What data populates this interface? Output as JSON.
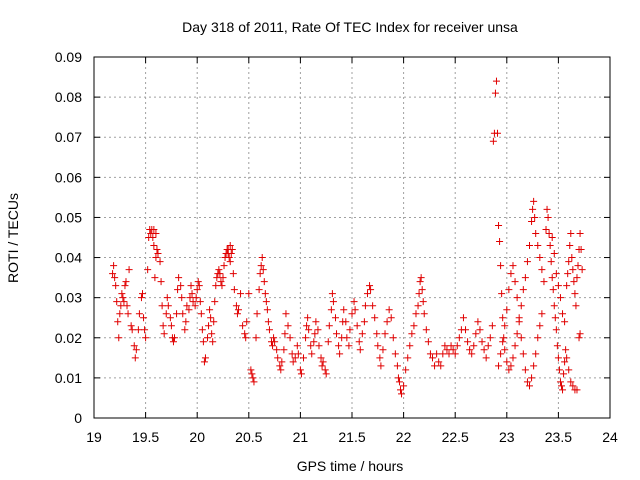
{
  "chart_data": {
    "type": "scatter",
    "title": "Day 318 of 2011, Rate Of TEC Index for receiver unsa",
    "xlabel": "GPS time / hours",
    "ylabel": "ROTI / TECUs",
    "xlim": [
      19,
      24
    ],
    "ylim": [
      0,
      0.09
    ],
    "xticks": [
      "19",
      "19.5",
      "20",
      "20.5",
      "21",
      "21.5",
      "22",
      "22.5",
      "23",
      "23.5",
      "24"
    ],
    "yticks": [
      "0",
      "0.01",
      "0.02",
      "0.03",
      "0.04",
      "0.05",
      "0.06",
      "0.07",
      "0.08",
      "0.09"
    ],
    "grid": true,
    "marker": "+",
    "color": "#e00000",
    "points": [
      [
        19.18,
        0.036
      ],
      [
        19.19,
        0.038
      ],
      [
        19.2,
        0.035
      ],
      [
        19.21,
        0.033
      ],
      [
        19.22,
        0.029
      ],
      [
        19.23,
        0.024
      ],
      [
        19.24,
        0.02
      ],
      [
        19.25,
        0.026
      ],
      [
        19.26,
        0.028
      ],
      [
        19.27,
        0.031
      ],
      [
        19.28,
        0.03
      ],
      [
        19.29,
        0.029
      ],
      [
        19.3,
        0.033
      ],
      [
        19.31,
        0.034
      ],
      [
        19.32,
        0.028
      ],
      [
        19.33,
        0.026
      ],
      [
        19.34,
        0.037
      ],
      [
        19.36,
        0.023
      ],
      [
        19.37,
        0.022
      ],
      [
        19.39,
        0.018
      ],
      [
        19.4,
        0.015
      ],
      [
        19.41,
        0.017
      ],
      [
        19.43,
        0.022
      ],
      [
        19.44,
        0.026
      ],
      [
        19.46,
        0.03
      ],
      [
        19.47,
        0.031
      ],
      [
        19.48,
        0.025
      ],
      [
        19.49,
        0.022
      ],
      [
        19.5,
        0.02
      ],
      [
        19.52,
        0.037
      ],
      [
        19.53,
        0.045
      ],
      [
        19.54,
        0.047
      ],
      [
        19.55,
        0.046
      ],
      [
        19.56,
        0.047
      ],
      [
        19.57,
        0.045
      ],
      [
        19.58,
        0.043
      ],
      [
        19.59,
        0.035
      ],
      [
        19.6,
        0.04
      ],
      [
        19.61,
        0.042
      ],
      [
        19.62,
        0.041
      ],
      [
        19.64,
        0.039
      ],
      [
        19.65,
        0.034
      ],
      [
        19.66,
        0.028
      ],
      [
        19.67,
        0.023
      ],
      [
        19.68,
        0.021
      ],
      [
        19.7,
        0.026
      ],
      [
        19.71,
        0.03
      ],
      [
        19.72,
        0.028
      ],
      [
        19.74,
        0.025
      ],
      [
        19.75,
        0.023
      ],
      [
        19.76,
        0.02
      ],
      [
        19.77,
        0.019
      ],
      [
        19.78,
        0.02
      ],
      [
        19.8,
        0.026
      ],
      [
        19.81,
        0.032
      ],
      [
        19.82,
        0.035
      ],
      [
        19.84,
        0.033
      ],
      [
        19.85,
        0.03
      ],
      [
        19.86,
        0.026
      ],
      [
        19.88,
        0.022
      ],
      [
        19.89,
        0.024
      ],
      [
        19.9,
        0.028
      ],
      [
        19.92,
        0.027
      ],
      [
        19.93,
        0.03
      ],
      [
        19.94,
        0.033
      ],
      [
        19.95,
        0.031
      ],
      [
        19.96,
        0.029
      ],
      [
        19.98,
        0.028
      ],
      [
        19.99,
        0.03
      ],
      [
        20.0,
        0.032
      ],
      [
        20.01,
        0.034
      ],
      [
        20.02,
        0.033
      ],
      [
        20.03,
        0.029
      ],
      [
        20.04,
        0.026
      ],
      [
        20.05,
        0.022
      ],
      [
        20.06,
        0.019
      ],
      [
        20.07,
        0.014
      ],
      [
        20.08,
        0.015
      ],
      [
        20.1,
        0.02
      ],
      [
        20.11,
        0.023
      ],
      [
        20.12,
        0.027
      ],
      [
        20.13,
        0.025
      ],
      [
        20.14,
        0.021
      ],
      [
        20.15,
        0.019
      ],
      [
        20.16,
        0.024
      ],
      [
        20.17,
        0.029
      ],
      [
        20.18,
        0.033
      ],
      [
        20.19,
        0.035
      ],
      [
        20.2,
        0.036
      ],
      [
        20.21,
        0.037
      ],
      [
        20.22,
        0.036
      ],
      [
        20.23,
        0.034
      ],
      [
        20.24,
        0.033
      ],
      [
        20.25,
        0.035
      ],
      [
        20.26,
        0.038
      ],
      [
        20.27,
        0.04
      ],
      [
        20.28,
        0.041
      ],
      [
        20.29,
        0.042
      ],
      [
        20.3,
        0.041
      ],
      [
        20.31,
        0.04
      ],
      [
        20.32,
        0.039
      ],
      [
        20.33,
        0.041
      ],
      [
        20.34,
        0.042
      ],
      [
        20.35,
        0.036
      ],
      [
        20.36,
        0.032
      ],
      [
        20.38,
        0.028
      ],
      [
        20.39,
        0.026
      ],
      [
        20.4,
        0.027
      ],
      [
        20.42,
        0.031
      ],
      [
        20.44,
        0.023
      ],
      [
        20.46,
        0.021
      ],
      [
        20.47,
        0.02
      ],
      [
        20.48,
        0.024
      ],
      [
        20.5,
        0.031
      ],
      [
        20.52,
        0.012
      ],
      [
        20.53,
        0.011
      ],
      [
        20.54,
        0.01
      ],
      [
        20.55,
        0.009
      ],
      [
        20.57,
        0.02
      ],
      [
        20.58,
        0.026
      ],
      [
        20.6,
        0.032
      ],
      [
        20.61,
        0.036
      ],
      [
        20.62,
        0.038
      ],
      [
        20.63,
        0.04
      ],
      [
        20.64,
        0.037
      ],
      [
        20.65,
        0.034
      ],
      [
        20.66,
        0.031
      ],
      [
        20.67,
        0.029
      ],
      [
        20.68,
        0.027
      ],
      [
        20.69,
        0.024
      ],
      [
        20.7,
        0.022
      ],
      [
        20.72,
        0.019
      ],
      [
        20.73,
        0.018
      ],
      [
        20.74,
        0.02
      ],
      [
        20.75,
        0.019
      ],
      [
        20.77,
        0.017
      ],
      [
        20.78,
        0.015
      ],
      [
        20.8,
        0.013
      ],
      [
        20.81,
        0.012
      ],
      [
        20.82,
        0.014
      ],
      [
        20.84,
        0.017
      ],
      [
        20.85,
        0.021
      ],
      [
        20.86,
        0.026
      ],
      [
        20.88,
        0.023
      ],
      [
        20.9,
        0.02
      ],
      [
        20.92,
        0.016
      ],
      [
        20.93,
        0.014
      ],
      [
        20.95,
        0.015
      ],
      [
        20.97,
        0.018
      ],
      [
        20.98,
        0.016
      ],
      [
        21.0,
        0.012
      ],
      [
        21.01,
        0.011
      ],
      [
        21.03,
        0.015
      ],
      [
        21.05,
        0.02
      ],
      [
        21.06,
        0.023
      ],
      [
        21.07,
        0.025
      ],
      [
        21.08,
        0.022
      ],
      [
        21.1,
        0.018
      ],
      [
        21.11,
        0.016
      ],
      [
        21.13,
        0.019
      ],
      [
        21.14,
        0.021
      ],
      [
        21.15,
        0.024
      ],
      [
        21.17,
        0.022
      ],
      [
        21.18,
        0.018
      ],
      [
        21.2,
        0.015
      ],
      [
        21.21,
        0.013
      ],
      [
        21.22,
        0.014
      ],
      [
        21.24,
        0.012
      ],
      [
        21.25,
        0.011
      ],
      [
        21.27,
        0.019
      ],
      [
        21.28,
        0.023
      ],
      [
        21.3,
        0.027
      ],
      [
        21.31,
        0.031
      ],
      [
        21.32,
        0.029
      ],
      [
        21.34,
        0.025
      ],
      [
        21.35,
        0.021
      ],
      [
        21.37,
        0.018
      ],
      [
        21.38,
        0.016
      ],
      [
        21.4,
        0.02
      ],
      [
        21.41,
        0.024
      ],
      [
        21.42,
        0.027
      ],
      [
        21.44,
        0.024
      ],
      [
        21.45,
        0.02
      ],
      [
        21.47,
        0.018
      ],
      [
        21.48,
        0.022
      ],
      [
        21.5,
        0.026
      ],
      [
        21.52,
        0.029
      ],
      [
        21.53,
        0.027
      ],
      [
        21.55,
        0.023
      ],
      [
        21.57,
        0.019
      ],
      [
        21.58,
        0.017
      ],
      [
        21.6,
        0.021
      ],
      [
        21.62,
        0.024
      ],
      [
        21.63,
        0.028
      ],
      [
        21.65,
        0.031
      ],
      [
        21.67,
        0.033
      ],
      [
        21.68,
        0.032
      ],
      [
        21.7,
        0.028
      ],
      [
        21.72,
        0.025
      ],
      [
        21.74,
        0.021
      ],
      [
        21.75,
        0.018
      ],
      [
        21.77,
        0.015
      ],
      [
        21.78,
        0.013
      ],
      [
        21.8,
        0.017
      ],
      [
        21.82,
        0.021
      ],
      [
        21.84,
        0.024
      ],
      [
        21.86,
        0.027
      ],
      [
        21.88,
        0.025
      ],
      [
        21.9,
        0.02
      ],
      [
        21.92,
        0.016
      ],
      [
        21.94,
        0.013
      ],
      [
        21.95,
        0.01
      ],
      [
        21.96,
        0.009
      ],
      [
        21.97,
        0.007
      ],
      [
        21.98,
        0.006
      ],
      [
        22.0,
        0.008
      ],
      [
        22.02,
        0.012
      ],
      [
        22.04,
        0.015
      ],
      [
        22.06,
        0.018
      ],
      [
        22.08,
        0.021
      ],
      [
        22.1,
        0.023
      ],
      [
        22.12,
        0.026
      ],
      [
        22.14,
        0.028
      ],
      [
        22.15,
        0.031
      ],
      [
        22.16,
        0.034
      ],
      [
        22.17,
        0.035
      ],
      [
        22.18,
        0.032
      ],
      [
        22.19,
        0.029
      ],
      [
        22.2,
        0.026
      ],
      [
        22.22,
        0.022
      ],
      [
        22.24,
        0.019
      ],
      [
        22.26,
        0.016
      ],
      [
        22.28,
        0.015
      ],
      [
        22.3,
        0.013
      ],
      [
        22.32,
        0.016
      ],
      [
        22.34,
        0.014
      ],
      [
        22.36,
        0.013
      ],
      [
        22.38,
        0.016
      ],
      [
        22.4,
        0.018
      ],
      [
        22.42,
        0.017
      ],
      [
        22.44,
        0.016
      ],
      [
        22.46,
        0.018
      ],
      [
        22.48,
        0.017
      ],
      [
        22.5,
        0.016
      ],
      [
        22.52,
        0.018
      ],
      [
        22.54,
        0.02
      ],
      [
        22.56,
        0.022
      ],
      [
        22.58,
        0.025
      ],
      [
        22.6,
        0.022
      ],
      [
        22.62,
        0.019
      ],
      [
        22.64,
        0.017
      ],
      [
        22.66,
        0.016
      ],
      [
        22.68,
        0.018
      ],
      [
        22.7,
        0.021
      ],
      [
        22.72,
        0.024
      ],
      [
        22.74,
        0.022
      ],
      [
        22.76,
        0.019
      ],
      [
        22.78,
        0.017
      ],
      [
        22.8,
        0.015
      ],
      [
        22.82,
        0.018
      ],
      [
        22.84,
        0.02
      ],
      [
        22.86,
        0.023
      ],
      [
        22.87,
        0.069
      ],
      [
        22.88,
        0.071
      ],
      [
        22.89,
        0.081
      ],
      [
        22.9,
        0.084
      ],
      [
        22.91,
        0.071
      ],
      [
        22.92,
        0.048
      ],
      [
        22.93,
        0.044
      ],
      [
        22.94,
        0.038
      ],
      [
        22.95,
        0.031
      ],
      [
        22.96,
        0.025
      ],
      [
        22.97,
        0.02
      ],
      [
        22.98,
        0.017
      ],
      [
        23.0,
        0.014
      ],
      [
        23.02,
        0.012
      ],
      [
        23.04,
        0.013
      ],
      [
        23.06,
        0.015
      ],
      [
        23.08,
        0.018
      ],
      [
        23.1,
        0.021
      ],
      [
        23.12,
        0.024
      ],
      [
        23.14,
        0.028
      ],
      [
        23.16,
        0.032
      ],
      [
        23.18,
        0.035
      ],
      [
        23.2,
        0.039
      ],
      [
        23.22,
        0.043
      ],
      [
        23.24,
        0.049
      ],
      [
        23.25,
        0.052
      ],
      [
        23.26,
        0.054
      ],
      [
        23.27,
        0.05
      ],
      [
        23.28,
        0.046
      ],
      [
        23.3,
        0.043
      ],
      [
        23.32,
        0.04
      ],
      [
        23.34,
        0.037
      ],
      [
        23.36,
        0.034
      ],
      [
        23.38,
        0.047
      ],
      [
        23.39,
        0.052
      ],
      [
        23.4,
        0.05
      ],
      [
        23.41,
        0.046
      ],
      [
        23.42,
        0.043
      ],
      [
        23.43,
        0.039
      ],
      [
        23.44,
        0.035
      ],
      [
        23.45,
        0.032
      ],
      [
        23.46,
        0.028
      ],
      [
        23.47,
        0.025
      ],
      [
        23.48,
        0.022
      ],
      [
        23.49,
        0.018
      ],
      [
        23.5,
        0.015
      ],
      [
        23.51,
        0.012
      ],
      [
        23.52,
        0.009
      ],
      [
        23.53,
        0.008
      ],
      [
        23.54,
        0.007
      ],
      [
        23.55,
        0.011
      ],
      [
        23.56,
        0.014
      ],
      [
        23.57,
        0.017
      ],
      [
        23.58,
        0.033
      ],
      [
        23.59,
        0.036
      ],
      [
        23.6,
        0.039
      ],
      [
        23.61,
        0.043
      ],
      [
        23.62,
        0.046
      ],
      [
        23.63,
        0.04
      ],
      [
        23.64,
        0.037
      ],
      [
        23.65,
        0.034
      ],
      [
        23.66,
        0.031
      ],
      [
        23.67,
        0.028
      ],
      [
        23.68,
        0.035
      ],
      [
        23.69,
        0.038
      ],
      [
        23.7,
        0.042
      ],
      [
        23.71,
        0.046
      ],
      [
        23.72,
        0.042
      ],
      [
        23.73,
        0.037
      ],
      [
        23.7,
        0.02
      ],
      [
        23.71,
        0.021
      ],
      [
        23.62,
        0.009
      ],
      [
        23.64,
        0.008
      ],
      [
        23.66,
        0.007
      ],
      [
        23.68,
        0.007
      ],
      [
        23.6,
        0.012
      ],
      [
        23.58,
        0.015
      ],
      [
        23.56,
        0.024
      ],
      [
        23.54,
        0.026
      ],
      [
        23.52,
        0.03
      ],
      [
        23.5,
        0.033
      ],
      [
        23.48,
        0.036
      ],
      [
        23.46,
        0.041
      ],
      [
        23.44,
        0.045
      ],
      [
        23.34,
        0.026
      ],
      [
        23.32,
        0.023
      ],
      [
        23.3,
        0.02
      ],
      [
        23.28,
        0.016
      ],
      [
        23.26,
        0.013
      ],
      [
        23.24,
        0.01
      ],
      [
        23.22,
        0.008
      ],
      [
        23.2,
        0.009
      ],
      [
        23.18,
        0.012
      ],
      [
        23.16,
        0.016
      ],
      [
        23.14,
        0.02
      ],
      [
        23.12,
        0.025
      ],
      [
        23.1,
        0.03
      ],
      [
        23.08,
        0.034
      ],
      [
        23.06,
        0.038
      ],
      [
        23.04,
        0.036
      ],
      [
        23.02,
        0.032
      ],
      [
        23.0,
        0.027
      ],
      [
        22.98,
        0.023
      ],
      [
        22.96,
        0.019
      ],
      [
        22.94,
        0.016
      ],
      [
        22.92,
        0.013
      ],
      [
        19.58,
        0.047
      ],
      [
        19.6,
        0.046
      ],
      [
        20.3,
        0.042
      ],
      [
        20.32,
        0.043
      ]
    ]
  }
}
